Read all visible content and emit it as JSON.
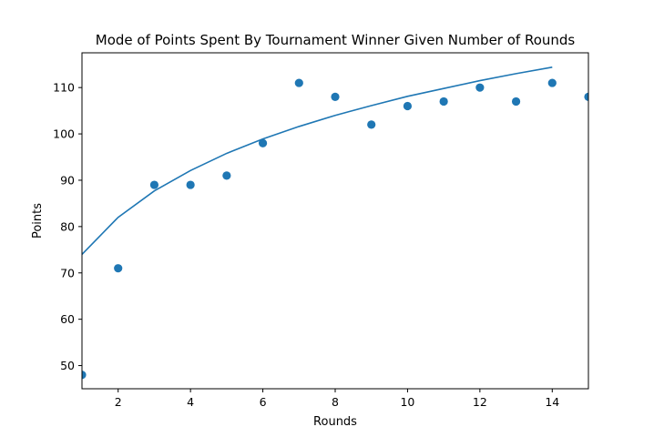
{
  "chart_data": {
    "type": "scatter",
    "title": "Mode of Points Spent By Tournament Winner Given Number of Rounds",
    "xlabel": "Rounds",
    "ylabel": "Points",
    "xlim": [
      1,
      15
    ],
    "ylim": [
      45,
      117.5
    ],
    "xticks": [
      2,
      4,
      6,
      8,
      10,
      12,
      14
    ],
    "yticks": [
      50,
      60,
      70,
      80,
      90,
      100,
      110
    ],
    "grid": false,
    "series": [
      {
        "type": "scatter",
        "x": [
          1,
          2,
          3,
          4,
          5,
          6,
          7,
          8,
          9,
          10,
          11,
          12,
          13,
          14,
          15
        ],
        "y": [
          48,
          71,
          89,
          89,
          91,
          98,
          111,
          108,
          102,
          106,
          107,
          110,
          107,
          111,
          108
        ],
        "color": "#1f77b4"
      },
      {
        "type": "line",
        "x": [
          1,
          2,
          3,
          4,
          5,
          6,
          7,
          8,
          9,
          10,
          11,
          12,
          13,
          14
        ],
        "y": [
          74,
          82,
          87.7,
          92.1,
          95.8,
          98.9,
          101.6,
          104,
          106.1,
          108.1,
          109.8,
          111.5,
          113,
          114.4
        ],
        "color": "#1f77b4"
      }
    ]
  }
}
